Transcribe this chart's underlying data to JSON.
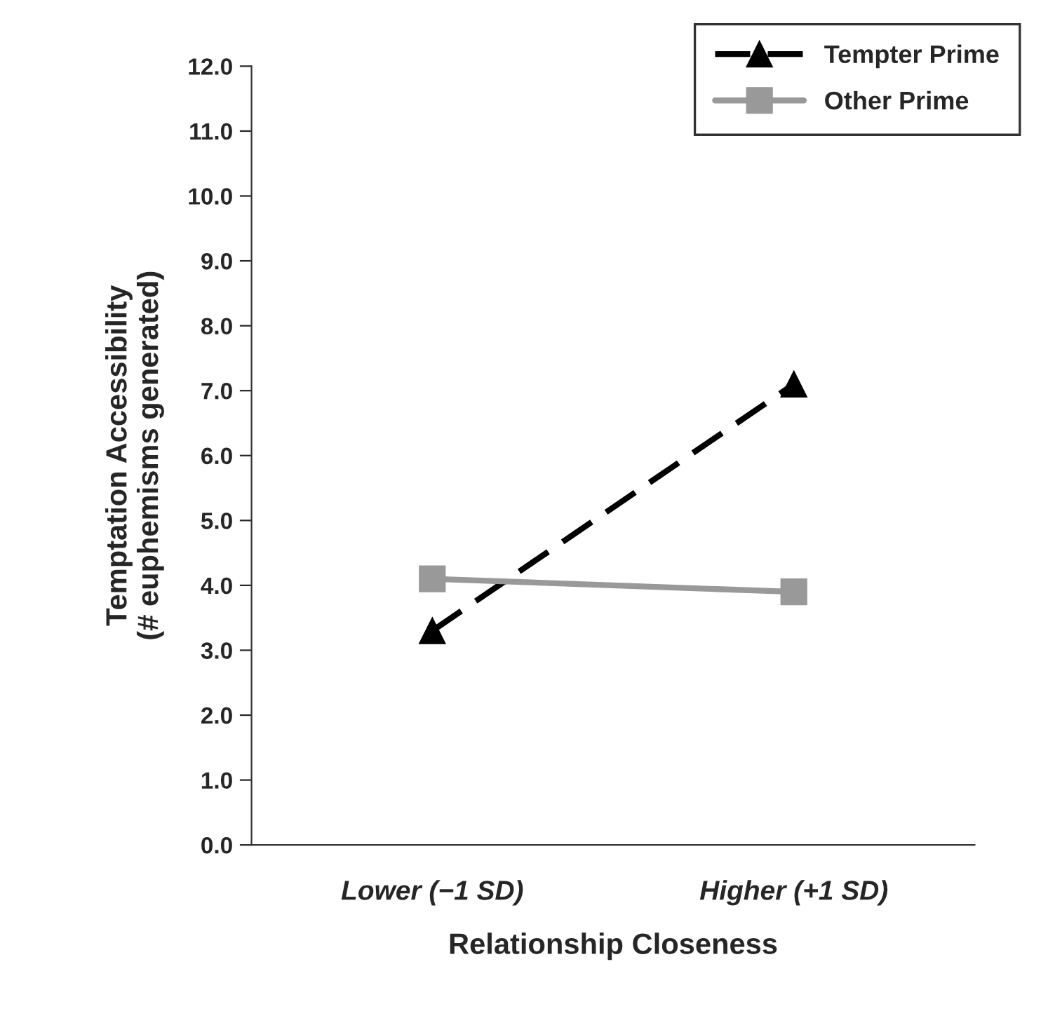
{
  "chart_data": {
    "type": "line",
    "xlabel": "Relationship Closeness",
    "ylabel": "Temptation Accessibility\n(# euphemisms generated)",
    "categories": [
      "Lower (−1 SD)",
      "Higher (+1 SD)"
    ],
    "series": [
      {
        "name": "Tempter Prime",
        "color": "#000000",
        "values": [
          3.3,
          7.1
        ],
        "marker": "triangle",
        "line_style": "dashed"
      },
      {
        "name": "Other Prime",
        "color": "#999999",
        "values": [
          4.1,
          3.9
        ],
        "marker": "square",
        "line_style": "solid"
      }
    ],
    "ylim": [
      0,
      12
    ],
    "yticks": [
      {
        "value": 0,
        "label": "0.0"
      },
      {
        "value": 1,
        "label": "1.0"
      },
      {
        "value": 2,
        "label": "2.0"
      },
      {
        "value": 3,
        "label": "3.0"
      },
      {
        "value": 4,
        "label": "4.0"
      },
      {
        "value": 5,
        "label": "5.0"
      },
      {
        "value": 6,
        "label": "6.0"
      },
      {
        "value": 7,
        "label": "7.0"
      },
      {
        "value": 8,
        "label": "8.0"
      },
      {
        "value": 9,
        "label": "9.0"
      },
      {
        "value": 10,
        "label": "10.0"
      },
      {
        "value": 11,
        "label": "11.0"
      },
      {
        "value": 12,
        "label": "12.0"
      }
    ],
    "grid": false,
    "legend": "top right"
  }
}
